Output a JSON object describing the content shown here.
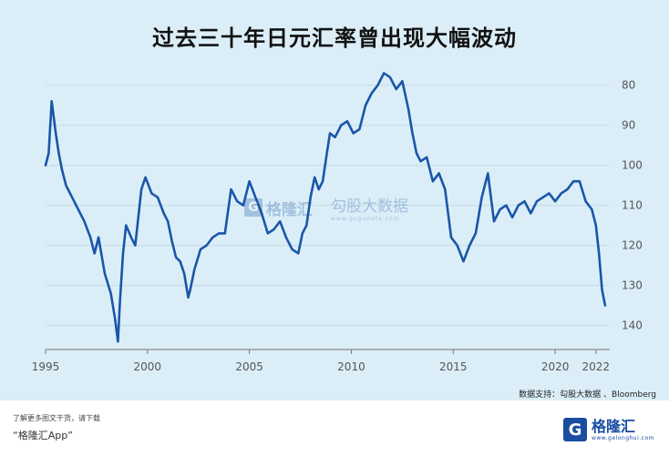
{
  "title": "过去三十年日元汇率曾出现大幅波动",
  "source": "数据支持：勾股大数据 、Bloomberg",
  "footer": {
    "line1": "了解更多图文干货，请下载",
    "line2": "“格隆汇App”"
  },
  "brand": {
    "logo": "G",
    "name": "格隆汇",
    "url": "www.gelonghui.com"
  },
  "watermark": {
    "logo": "G",
    "name": "格隆汇",
    "name2": "勾股大数据",
    "url": "www.gogudata.com"
  },
  "colors": {
    "background": "#dbeef8",
    "line": "#1a56a8",
    "accent": "#1a4da1"
  },
  "chart_data": {
    "type": "line",
    "title": "过去三十年日元汇率曾出现大幅波动",
    "xlabel": "",
    "ylabel": "",
    "x_ticks": [
      "1995",
      "2000",
      "2005",
      "2010",
      "2015",
      "2020",
      "2022"
    ],
    "y_ticks": [
      80,
      90,
      100,
      110,
      120,
      130,
      140
    ],
    "xlim": [
      1995,
      2022.5
    ],
    "ylim": [
      146,
      76
    ],
    "y_inverted": true,
    "y_axis_side": "right",
    "grid": true,
    "series": [
      {
        "name": "",
        "x": [
          1995.0,
          1995.15,
          1995.3,
          1995.5,
          1995.65,
          1995.8,
          1996.0,
          1996.3,
          1996.6,
          1996.9,
          1997.2,
          1997.4,
          1997.6,
          1997.9,
          1998.2,
          1998.4,
          1998.55,
          1998.65,
          1998.8,
          1998.95,
          1999.2,
          1999.4,
          1999.7,
          1999.9,
          2000.2,
          2000.5,
          2000.8,
          2001.0,
          2001.2,
          2001.4,
          2001.6,
          2001.8,
          2002.0,
          2002.1,
          2002.3,
          2002.6,
          2002.9,
          2003.2,
          2003.5,
          2003.8,
          2004.1,
          2004.4,
          2004.7,
          2005.0,
          2005.3,
          2005.6,
          2005.9,
          2006.2,
          2006.5,
          2006.8,
          2007.1,
          2007.4,
          2007.6,
          2007.8,
          2008.0,
          2008.2,
          2008.4,
          2008.6,
          2008.8,
          2008.95,
          2009.2,
          2009.5,
          2009.8,
          2010.1,
          2010.4,
          2010.7,
          2011.0,
          2011.3,
          2011.6,
          2011.9,
          2012.2,
          2012.5,
          2012.8,
          2013.0,
          2013.2,
          2013.4,
          2013.7,
          2014.0,
          2014.3,
          2014.6,
          2014.9,
          2015.2,
          2015.5,
          2015.8,
          2016.1,
          2016.4,
          2016.7,
          2017.0,
          2017.3,
          2017.6,
          2017.9,
          2018.2,
          2018.5,
          2018.8,
          2019.1,
          2019.4,
          2019.7,
          2020.0,
          2020.3,
          2020.6,
          2020.9,
          2021.2,
          2021.5,
          2021.8,
          2022.0,
          2022.15,
          2022.3,
          2022.45
        ],
        "y": [
          100,
          97,
          84,
          92,
          97,
          101,
          105,
          108,
          111,
          114,
          118,
          122,
          118,
          127,
          132,
          138,
          144,
          134,
          122,
          115,
          118,
          120,
          106,
          103,
          107,
          108,
          112,
          114,
          119,
          123,
          124,
          127,
          133,
          131,
          126,
          121,
          120,
          118,
          117,
          117,
          106,
          109,
          110,
          104,
          108,
          112,
          117,
          116,
          114,
          118,
          121,
          122,
          117,
          115,
          108,
          103,
          106,
          104,
          97,
          92,
          93,
          90,
          89,
          92,
          91,
          85,
          82,
          80,
          77,
          78,
          81,
          79,
          86,
          92,
          97,
          99,
          98,
          104,
          102,
          106,
          118,
          120,
          124,
          120,
          117,
          108,
          102,
          114,
          111,
          110,
          113,
          110,
          109,
          112,
          109,
          108,
          107,
          109,
          107,
          106,
          104,
          104,
          109,
          111,
          115,
          122,
          131,
          135
        ]
      }
    ]
  }
}
